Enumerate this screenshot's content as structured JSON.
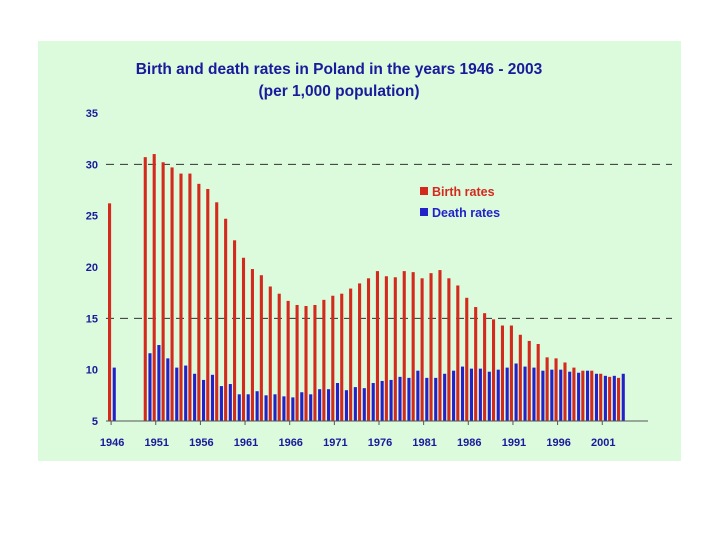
{
  "chart_data": {
    "type": "bar",
    "title": "Birth and death rates in Poland in the years 1946 - 2003",
    "subtitle": "(per 1,000 population)",
    "xlabel": "",
    "ylabel": "",
    "ylim": [
      5,
      35
    ],
    "yticks": [
      "35",
      "30",
      "25",
      "20",
      "15",
      "10",
      "5"
    ],
    "xtick_labels": [
      "1946",
      "1951",
      "1956",
      "1961",
      "1966",
      "1971",
      "1976",
      "1981",
      "1986",
      "1991",
      "1996",
      "2001"
    ],
    "dashed_gridlines_at": [
      30,
      15
    ],
    "legend_position": "right-center",
    "categories": [
      1946,
      1947,
      1948,
      1949,
      1950,
      1951,
      1952,
      1953,
      1954,
      1955,
      1956,
      1957,
      1958,
      1959,
      1960,
      1961,
      1962,
      1963,
      1964,
      1965,
      1966,
      1967,
      1968,
      1969,
      1970,
      1971,
      1972,
      1973,
      1974,
      1975,
      1976,
      1977,
      1978,
      1979,
      1980,
      1981,
      1982,
      1983,
      1984,
      1985,
      1986,
      1987,
      1988,
      1989,
      1990,
      1991,
      1992,
      1993,
      1994,
      1995,
      1996,
      1997,
      1998,
      1999,
      2000,
      2001,
      2002,
      2003
    ],
    "series": [
      {
        "name": "Birth rates",
        "color": "#d42a1e",
        "values": [
          26.2,
          null,
          null,
          null,
          30.7,
          31.0,
          30.2,
          29.7,
          29.1,
          29.1,
          28.1,
          27.6,
          26.3,
          24.7,
          22.6,
          20.9,
          19.8,
          19.2,
          18.1,
          17.4,
          16.7,
          16.3,
          16.2,
          16.3,
          16.8,
          17.2,
          17.4,
          17.9,
          18.4,
          18.9,
          19.6,
          19.1,
          19.0,
          19.6,
          19.5,
          18.9,
          19.4,
          19.7,
          18.9,
          18.2,
          17.0,
          16.1,
          15.5,
          14.9,
          14.3,
          14.3,
          13.4,
          12.8,
          12.5,
          11.2,
          11.1,
          10.7,
          10.2,
          9.9,
          9.9,
          9.6,
          9.3,
          9.2
        ]
      },
      {
        "name": "Death rates",
        "color": "#2222c8",
        "values": [
          10.2,
          null,
          null,
          null,
          11.6,
          12.4,
          11.1,
          10.2,
          10.4,
          9.6,
          9.0,
          9.5,
          8.4,
          8.6,
          7.6,
          7.6,
          7.9,
          7.5,
          7.6,
          7.4,
          7.3,
          7.8,
          7.6,
          8.1,
          8.1,
          8.7,
          8.0,
          8.3,
          8.2,
          8.7,
          8.9,
          9.0,
          9.3,
          9.2,
          9.9,
          9.2,
          9.2,
          9.6,
          9.9,
          10.3,
          10.1,
          10.1,
          9.8,
          10.0,
          10.2,
          10.6,
          10.3,
          10.2,
          9.9,
          10.0,
          10.0,
          9.8,
          9.7,
          9.9,
          9.6,
          9.4,
          9.4,
          9.6
        ]
      }
    ]
  }
}
